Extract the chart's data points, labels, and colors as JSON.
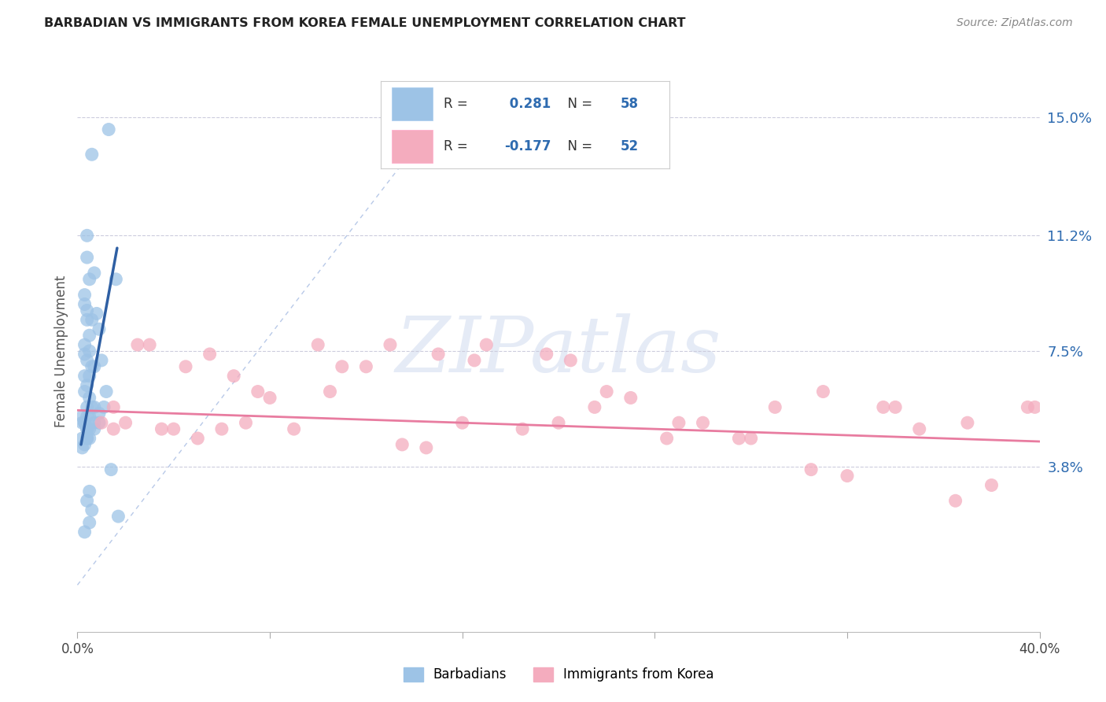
{
  "title": "BARBADIAN VS IMMIGRANTS FROM KOREA FEMALE UNEMPLOYMENT CORRELATION CHART",
  "source": "Source: ZipAtlas.com",
  "ylabel": "Female Unemployment",
  "ytick_labels": [
    "3.8%",
    "7.5%",
    "11.2%",
    "15.0%"
  ],
  "ytick_values": [
    3.8,
    7.5,
    11.2,
    15.0
  ],
  "xlim": [
    0.0,
    40.0
  ],
  "ylim": [
    -1.5,
    16.5
  ],
  "legend1_r": " 0.281",
  "legend1_n": "58",
  "legend2_r": "-0.177",
  "legend2_n": "52",
  "blue_color": "#9DC3E6",
  "pink_color": "#F4ACBE",
  "blue_line_color": "#2E5FA3",
  "pink_line_color": "#E87CA0",
  "dash_line_color": "#B8C9E8",
  "watermark_color": "#D5DEF0",
  "blue_text_color": "#2E6BB0",
  "pink_text_color": "#E87CA0",
  "barbadians_x": [
    0.6,
    1.3,
    0.4,
    0.4,
    0.5,
    0.7,
    0.3,
    0.3,
    0.4,
    0.6,
    0.9,
    0.4,
    0.5,
    0.8,
    1.6,
    0.3,
    0.3,
    0.4,
    0.5,
    0.7,
    1.0,
    0.5,
    0.6,
    1.2,
    0.4,
    0.3,
    0.3,
    0.5,
    0.7,
    0.9,
    0.4,
    0.4,
    0.3,
    0.2,
    0.2,
    0.5,
    0.7,
    1.1,
    0.4,
    0.5,
    0.3,
    0.4,
    0.6,
    0.2,
    0.4,
    0.5,
    0.9,
    0.3,
    0.4,
    0.2,
    0.7,
    0.4,
    0.5,
    1.4,
    0.3,
    0.5,
    1.7,
    0.6
  ],
  "barbadians_y": [
    13.8,
    14.6,
    10.5,
    11.2,
    9.8,
    10.0,
    9.3,
    9.0,
    8.8,
    8.5,
    8.2,
    8.5,
    8.0,
    8.7,
    9.8,
    7.7,
    7.4,
    7.2,
    7.5,
    7.0,
    7.2,
    6.7,
    7.0,
    6.2,
    6.4,
    6.7,
    6.2,
    6.0,
    5.7,
    5.5,
    5.7,
    5.4,
    5.2,
    5.4,
    5.2,
    5.0,
    5.2,
    5.7,
    4.7,
    5.4,
    5.2,
    5.0,
    5.7,
    4.7,
    5.0,
    4.7,
    5.2,
    4.5,
    4.7,
    4.4,
    5.0,
    2.7,
    3.0,
    3.7,
    1.7,
    2.0,
    2.2,
    2.4
  ],
  "korea_x": [
    1.0,
    1.5,
    2.5,
    3.0,
    4.5,
    5.5,
    6.5,
    7.5,
    10.0,
    11.0,
    13.0,
    14.5,
    15.0,
    16.5,
    17.0,
    18.5,
    19.5,
    20.5,
    21.5,
    23.0,
    24.5,
    26.0,
    27.5,
    29.0,
    30.5,
    32.0,
    33.5,
    35.0,
    36.5,
    38.0,
    39.5,
    2.0,
    3.5,
    5.0,
    6.0,
    8.0,
    9.0,
    12.0,
    22.0,
    25.0,
    28.0,
    31.0,
    34.0,
    37.0,
    1.5,
    4.0,
    7.0,
    10.5,
    13.5,
    16.0,
    20.0,
    39.8
  ],
  "korea_y": [
    5.2,
    5.0,
    7.7,
    7.7,
    7.0,
    7.4,
    6.7,
    6.2,
    7.7,
    7.0,
    7.7,
    4.4,
    7.4,
    7.2,
    7.7,
    5.0,
    7.4,
    7.2,
    5.7,
    6.0,
    4.7,
    5.2,
    4.7,
    5.7,
    3.7,
    3.5,
    5.7,
    5.0,
    2.7,
    3.2,
    5.7,
    5.2,
    5.0,
    4.7,
    5.0,
    6.0,
    5.0,
    7.0,
    6.2,
    5.2,
    4.7,
    6.2,
    5.7,
    5.2,
    5.7,
    5.0,
    5.2,
    6.2,
    4.5,
    5.2,
    5.2,
    5.7
  ],
  "blue_line_x": [
    0.15,
    1.65
  ],
  "blue_line_y": [
    4.5,
    10.8
  ],
  "pink_line_x": [
    0.0,
    40.0
  ],
  "pink_line_y": [
    5.6,
    4.6
  ],
  "dash_line_x": [
    0.0,
    15.5
  ],
  "dash_line_y": [
    0.0,
    15.5
  ]
}
